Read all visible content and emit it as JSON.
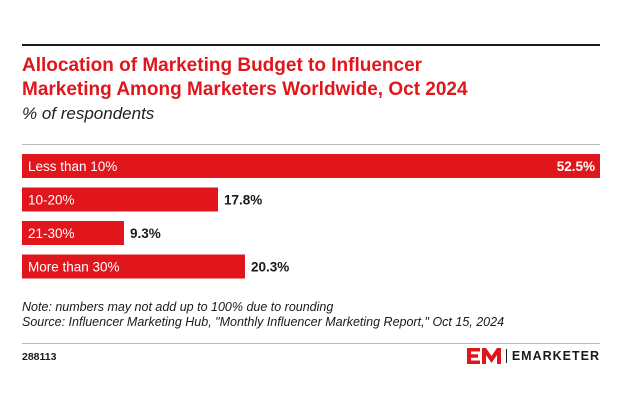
{
  "header": {
    "title_line1": "Allocation of Marketing Budget to Influencer",
    "title_line2": "Marketing Among Marketers Worldwide, Oct 2024",
    "subtitle": "% of respondents"
  },
  "chart_data": {
    "type": "bar",
    "orientation": "horizontal",
    "categories": [
      "Less than 10%",
      "10-20%",
      "21-30%",
      "More than 30%"
    ],
    "values": [
      52.5,
      17.8,
      9.3,
      20.3
    ],
    "value_labels": [
      "52.5%",
      "17.8%",
      "9.3%",
      "20.3%"
    ],
    "title": "Allocation of Marketing Budget to Influencer Marketing Among Marketers Worldwide, Oct 2024",
    "subtitle": "% of respondents",
    "xlim": [
      0,
      52.5
    ],
    "grid": false,
    "bar_color": "#e1161c"
  },
  "footer": {
    "note": "Note: numbers may not add up to 100% due to rounding",
    "source": "Source: Influencer Marketing Hub, \"Monthly Influencer Marketing Report,\" Oct 15, 2024",
    "chart_id": "288113",
    "brand_name": "EMARKETER",
    "brand_icon": "em-logo-icon"
  },
  "colors": {
    "accent": "#e1161c",
    "text": "#1a1a1a"
  }
}
